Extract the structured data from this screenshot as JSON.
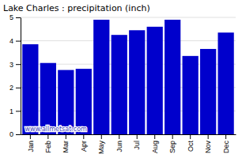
{
  "chart_data": {
    "type": "bar",
    "title": "Lake Charles : precipitation (inch)",
    "categories": [
      "Jan",
      "Feb",
      "Mar",
      "Apr",
      "May",
      "Jun",
      "Jul",
      "Aug",
      "Sep",
      "Oct",
      "Nov",
      "Dec"
    ],
    "values": [
      3.85,
      3.05,
      2.75,
      2.8,
      4.9,
      4.25,
      4.45,
      4.6,
      4.9,
      3.35,
      3.65,
      4.35
    ],
    "color": "#0000CC",
    "ylim": [
      0,
      5
    ],
    "yticks": [
      0,
      1,
      2,
      3,
      4,
      5
    ],
    "grid": true,
    "annotations": [
      "www.allmetsat.com"
    ]
  }
}
